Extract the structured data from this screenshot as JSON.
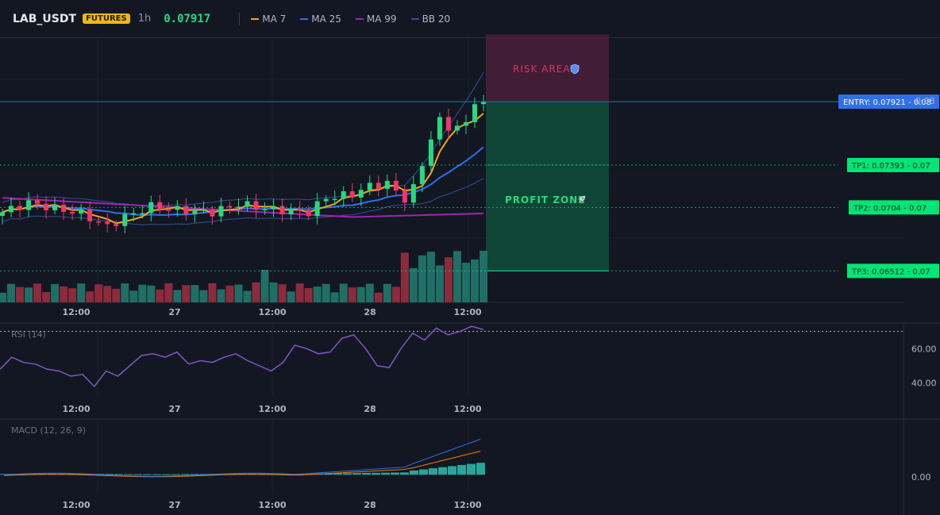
{
  "header": {
    "symbol": "LAB_USDT",
    "badge": "FUTURES",
    "timeframe": "1h",
    "last_price": "0.07917",
    "indicators": [
      {
        "label": "MA 7",
        "color": "#f7a21b"
      },
      {
        "label": "MA 25",
        "color": "#2f6fed"
      },
      {
        "label": "MA 99",
        "color": "#9c27b0"
      },
      {
        "label": "BB 20",
        "color": "#2e4f9e"
      }
    ]
  },
  "colors": {
    "up": "#26d980",
    "down": "#f23668",
    "vol_up": "#1f6f66",
    "vol_down": "#8c2b3c",
    "ma7": "#f7a21b",
    "ma25": "#2f6fed",
    "ma99": "#9c27b0",
    "bb": "#2e4f9e",
    "entry": "#2962ff",
    "tp": "#00e676",
    "rsi": "#7e57c2",
    "macd": "#2f6fed",
    "signal": "#f57c00",
    "hist_up": "#26a69a",
    "hist_down": "#ef5350"
  },
  "price_axis": {
    "label": "0.08",
    "min": 0.0625,
    "max": 0.0845
  },
  "time_axis": [
    "12:00",
    "27",
    "12:00",
    "28",
    "12:00"
  ],
  "zones": {
    "risk_label": "RISK AREA",
    "risk_icon": "shield-icon",
    "profit_label": "PROFIT ZONE",
    "profit_icon": "rocket-icon",
    "risk_top": 0.0848,
    "entry": 0.07921,
    "bottom": 0.06512
  },
  "levels": [
    {
      "name": "entry",
      "text": "ENTRY: 0.07921 - 0.08",
      "price": 0.07921
    },
    {
      "name": "tp1",
      "text": "TP1: 0.07393 - 0.07",
      "price": 0.07393
    },
    {
      "name": "tp2",
      "text": "TP2: 0.0704 - 0.07",
      "price": 0.0704
    },
    {
      "name": "tp3",
      "text": "TP3: 0.06512 - 0.07",
      "price": 0.06512
    }
  ],
  "rsi": {
    "title": "RSI (14)",
    "ticks": [
      "60.00",
      "40.00"
    ],
    "tick_values": [
      60,
      40
    ],
    "overbought": 70,
    "min": 32,
    "max": 74
  },
  "macd": {
    "title": "MACD (12, 26, 9)",
    "tick": "0.00",
    "min": -0.0012,
    "max": 0.0035
  }
}
